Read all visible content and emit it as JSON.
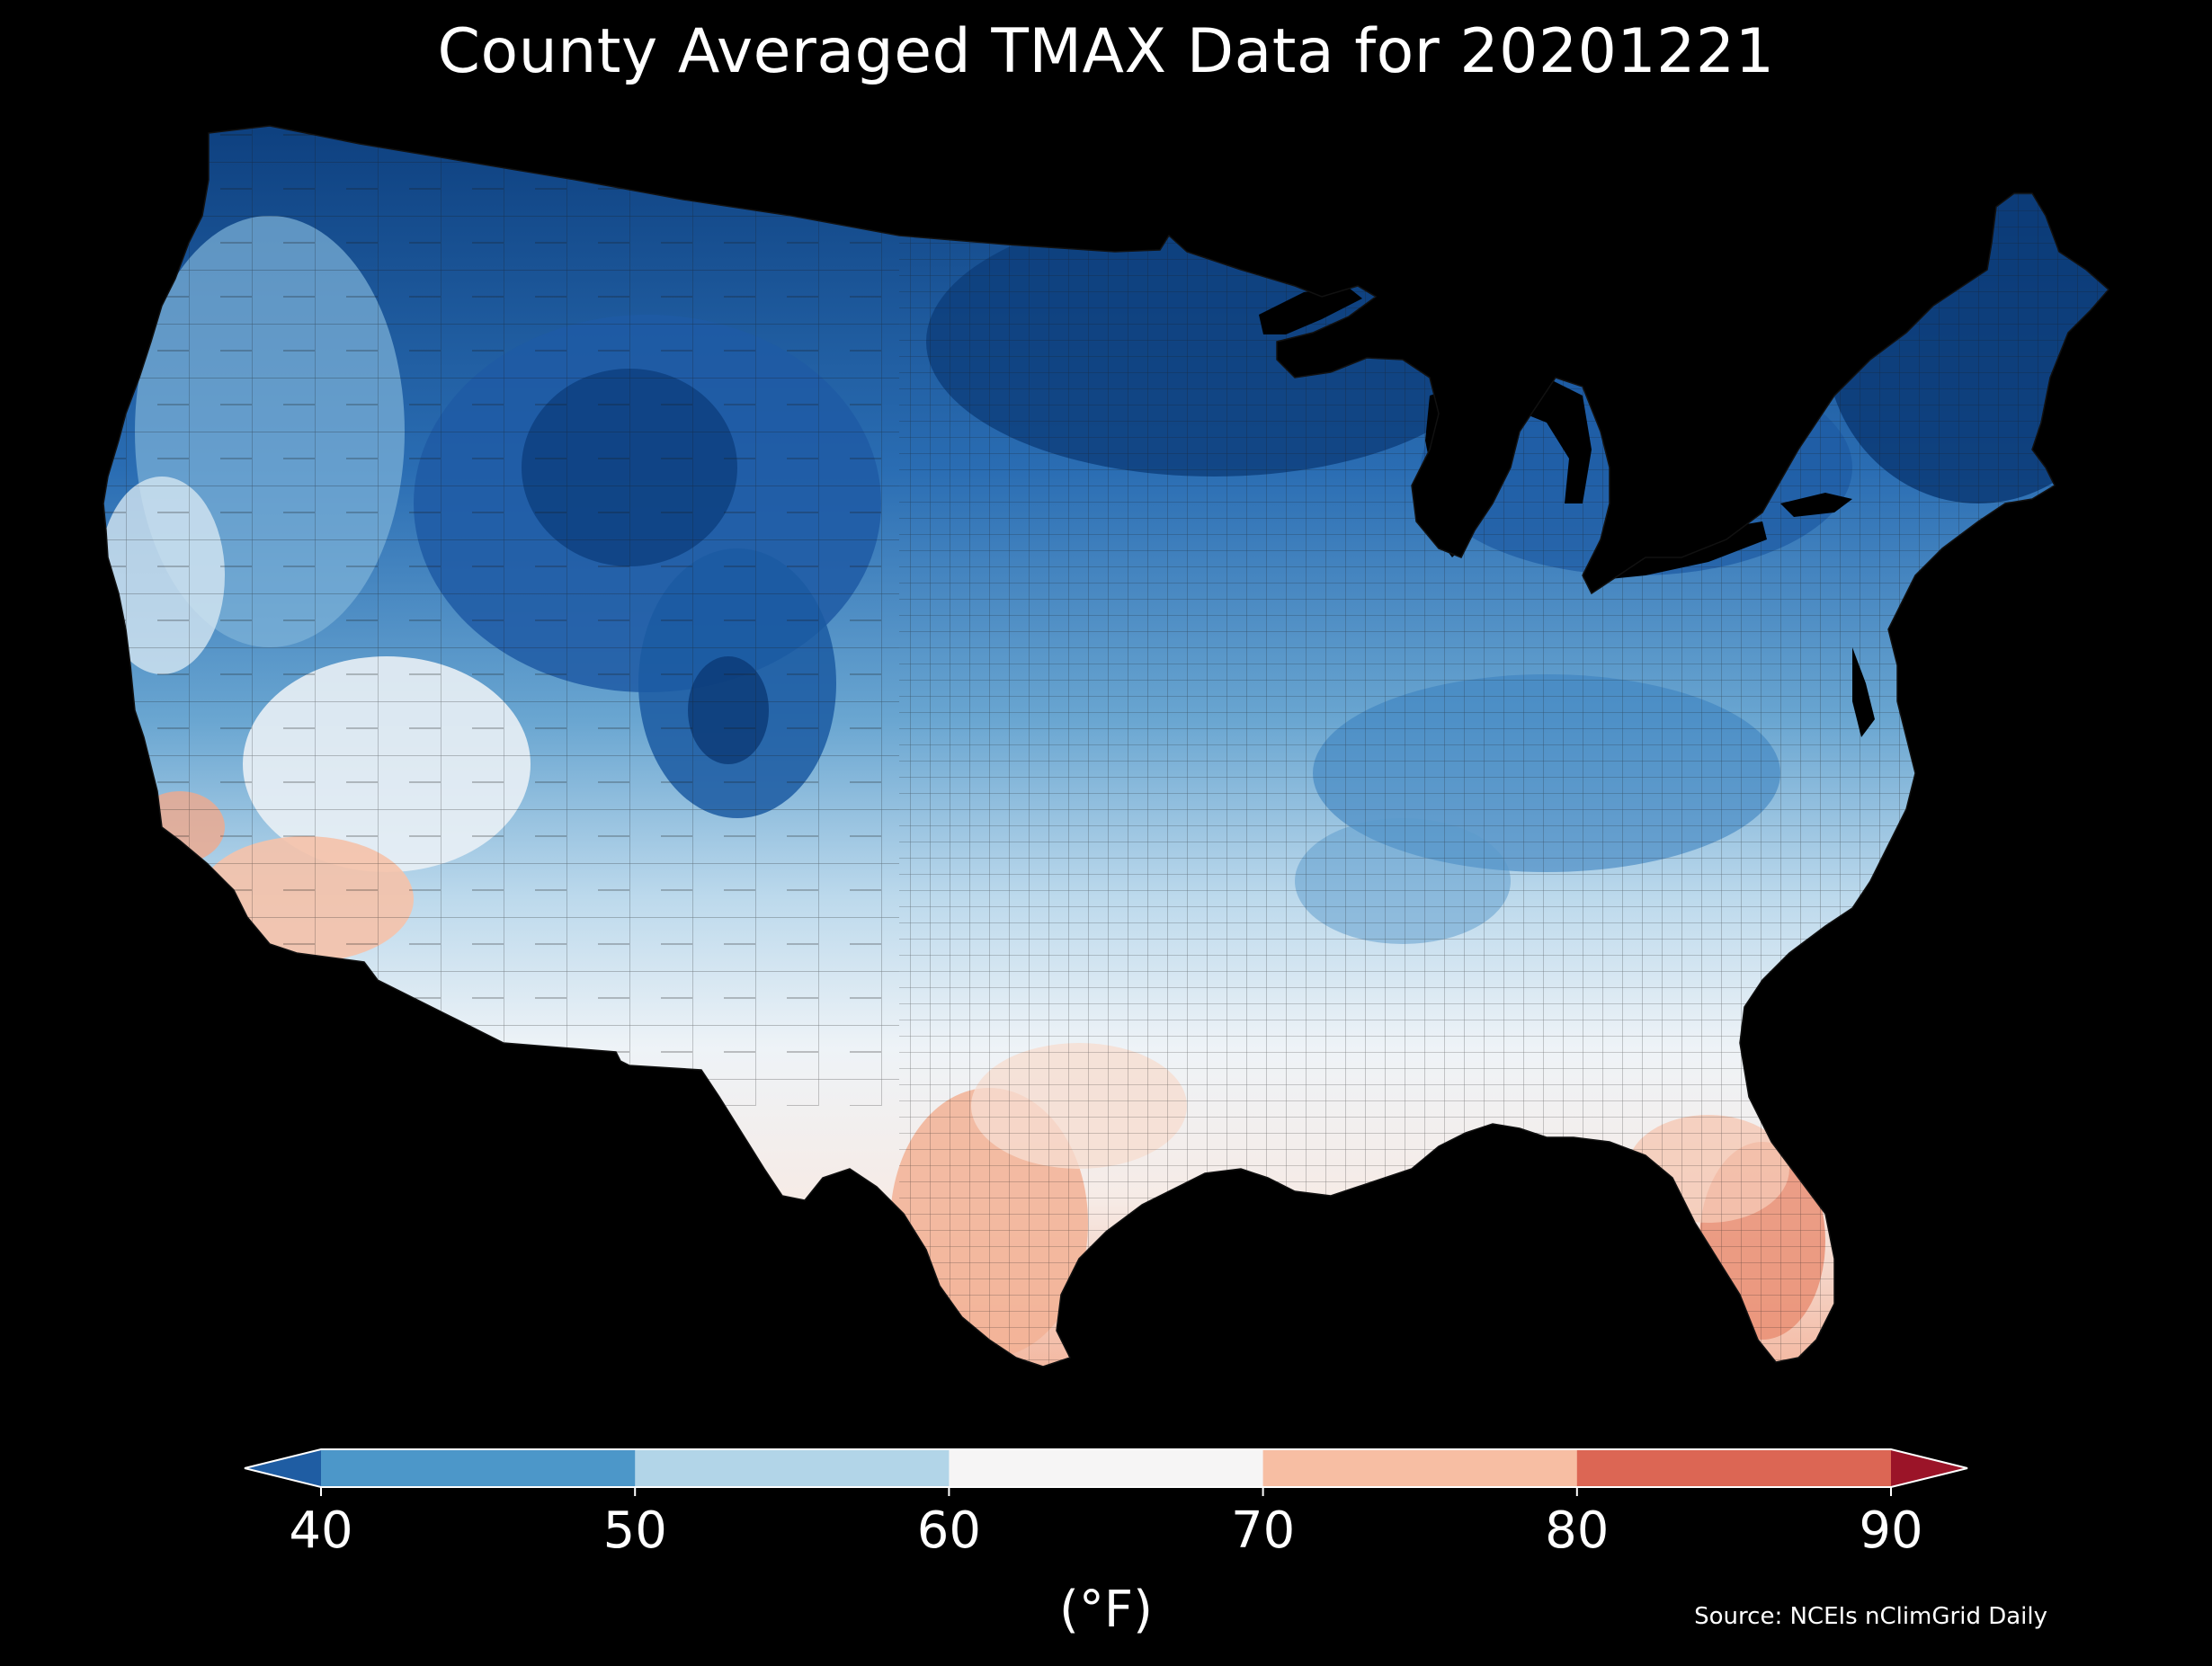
{
  "title": "County Averaged TMAX Data for 20201221",
  "source": "Source: NCEIs nClimGrid Daily",
  "colorbar": {
    "label": "(°F)",
    "ticks": [
      "40",
      "50",
      "60",
      "70",
      "80",
      "90"
    ],
    "bins": [
      {
        "range": "<40",
        "color": "#1f5da3"
      },
      {
        "range": "40-50",
        "color": "#4c97c9"
      },
      {
        "range": "50-60",
        "color": "#b2d5e8"
      },
      {
        "range": "60-70",
        "color": "#f6f5f5"
      },
      {
        "range": "70-80",
        "color": "#f7bea3"
      },
      {
        "range": "80-90",
        "color": "#dc6654"
      },
      {
        "range": ">90",
        "color": "#9b1428"
      }
    ],
    "extend": "both"
  },
  "map": {
    "region": "Contiguous United States",
    "variable": "TMAX",
    "units": "°F",
    "shading": "county-averaged, colder (blue) in north and northern Rockies, warmer (red) in south Texas, south Florida and southern California/Arizona",
    "palette": {
      "deep_blue": "#0a3770",
      "dark_blue": "#1d5ba6",
      "mid_blue": "#3f85c2",
      "light_blue": "#8cbedd",
      "pale_blue": "#c9e0ef",
      "near_white": "#ecf2f7",
      "white": "#f7f4f2",
      "pale_red": "#f8dfd2",
      "light_red": "#f3b59c",
      "mid_red": "#e6896f",
      "county_lines": "#1a1a1a"
    }
  }
}
